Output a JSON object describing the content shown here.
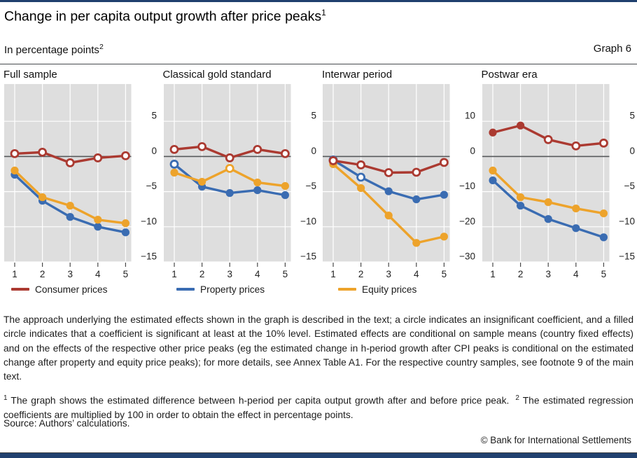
{
  "header": {
    "title": "Change in per capita output growth after price peaks",
    "title_footnote_marker": "1",
    "subtitle": "In percentage points",
    "subtitle_footnote_marker": "2",
    "graph_label": "Graph 6"
  },
  "colors": {
    "consumer": "#ab3a31",
    "property": "#3a6cb2",
    "equity": "#eda32b",
    "plot_background": "#dedede",
    "gridline": "#ffffff",
    "zero_line": "#55575a",
    "tick_mark": "#4a4a4a",
    "footer_bar": "#20406e"
  },
  "legend": {
    "items": [
      {
        "label": "Consumer prices",
        "series": "consumer",
        "x": 16
      },
      {
        "label": "Property prices",
        "series": "property",
        "x": 252
      },
      {
        "label": "Equity prices",
        "series": "equity",
        "x": 483
      }
    ]
  },
  "chart_data": [
    {
      "type": "line",
      "title": "Full sample",
      "x": [
        1,
        2,
        3,
        4,
        5
      ],
      "y_ticks": [
        5,
        0,
        -5,
        -10,
        -15
      ],
      "ylim": [
        -15,
        10.3
      ],
      "series": [
        {
          "name": "Consumer prices",
          "color": "consumer",
          "values": [
            0.4,
            0.6,
            -0.9,
            -0.2,
            0.1
          ],
          "significant": [
            false,
            false,
            false,
            false,
            false
          ]
        },
        {
          "name": "Property prices",
          "color": "property",
          "values": [
            -2.6,
            -6.3,
            -8.6,
            -10.0,
            -10.8
          ],
          "significant": [
            true,
            true,
            true,
            true,
            true
          ]
        },
        {
          "name": "Equity prices",
          "color": "equity",
          "values": [
            -2.0,
            -5.8,
            -7.0,
            -9.0,
            -9.5
          ],
          "significant": [
            true,
            true,
            true,
            true,
            true
          ]
        }
      ]
    },
    {
      "type": "line",
      "title": "Classical gold standard",
      "x": [
        1,
        2,
        3,
        4,
        5
      ],
      "y_ticks": [
        5,
        0,
        -5,
        -10,
        -15
      ],
      "ylim": [
        -15,
        10.3
      ],
      "series": [
        {
          "name": "Consumer prices",
          "color": "consumer",
          "values": [
            1.0,
            1.4,
            -0.2,
            1.0,
            0.4
          ],
          "significant": [
            false,
            false,
            false,
            false,
            false
          ]
        },
        {
          "name": "Property prices",
          "color": "property",
          "values": [
            -1.1,
            -4.3,
            -5.2,
            -4.8,
            -5.5
          ],
          "significant": [
            false,
            true,
            true,
            true,
            true
          ]
        },
        {
          "name": "Equity prices",
          "color": "equity",
          "values": [
            -2.3,
            -3.6,
            -1.7,
            -3.7,
            -4.2
          ],
          "significant": [
            true,
            true,
            false,
            true,
            true
          ]
        }
      ]
    },
    {
      "type": "line",
      "title": "Interwar period",
      "x": [
        1,
        2,
        3,
        4,
        5
      ],
      "y_ticks": [
        10,
        0,
        -10,
        -20,
        -30
      ],
      "ylim": [
        -30,
        20.6
      ],
      "series": [
        {
          "name": "Consumer prices",
          "color": "consumer",
          "values": [
            -1.2,
            -2.4,
            -4.6,
            -4.5,
            -1.7
          ],
          "significant": [
            false,
            false,
            false,
            false,
            false
          ]
        },
        {
          "name": "Property prices",
          "color": "property",
          "values": [
            -1.0,
            -5.9,
            -9.9,
            -12.2,
            -10.9
          ],
          "significant": [
            false,
            false,
            true,
            true,
            true
          ]
        },
        {
          "name": "Equity prices",
          "color": "equity",
          "values": [
            -2.2,
            -9.0,
            -16.8,
            -24.6,
            -22.8
          ],
          "significant": [
            true,
            true,
            true,
            true,
            true
          ]
        }
      ]
    },
    {
      "type": "line",
      "title": "Postwar era",
      "x": [
        1,
        2,
        3,
        4,
        5
      ],
      "y_ticks": [
        5,
        0,
        -5,
        -10,
        -15
      ],
      "ylim": [
        -15,
        10.3
      ],
      "series": [
        {
          "name": "Consumer prices",
          "color": "consumer",
          "values": [
            3.4,
            4.4,
            2.4,
            1.5,
            1.9
          ],
          "significant": [
            true,
            true,
            false,
            false,
            false
          ]
        },
        {
          "name": "Property prices",
          "color": "property",
          "values": [
            -3.4,
            -7.0,
            -8.9,
            -10.2,
            -11.5
          ],
          "significant": [
            true,
            true,
            true,
            true,
            true
          ]
        },
        {
          "name": "Equity prices",
          "color": "equity",
          "values": [
            -2.0,
            -5.8,
            -6.5,
            -7.4,
            -8.1
          ],
          "significant": [
            true,
            true,
            true,
            true,
            true
          ]
        }
      ]
    }
  ],
  "notes": "The approach underlying the estimated effects shown in the graph is described in the text; a circle indicates an insignificant coefficient, and a filled circle indicates that a coefficient is significant at least at the 10% level. Estimated effects are conditional on sample means (country fixed effects) and on the effects of the respective other price peaks (eg the estimated change in h-period growth after CPI peaks is conditional on the estimated change after property and equity price peaks); for more details, see Annex Table A1. For the respective country samples, see footnote 9 of the main text.",
  "footnotes": [
    {
      "marker": "1",
      "text": "The graph shows the estimated difference between h-period per capita output growth after and before price peak."
    },
    {
      "marker": "2",
      "text": "The estimated regression coefficients are multiplied by 100 in order to obtain the effect in percentage points."
    }
  ],
  "source": "Source: Authors’ calculations.",
  "copyright": "© Bank for International Settlements"
}
